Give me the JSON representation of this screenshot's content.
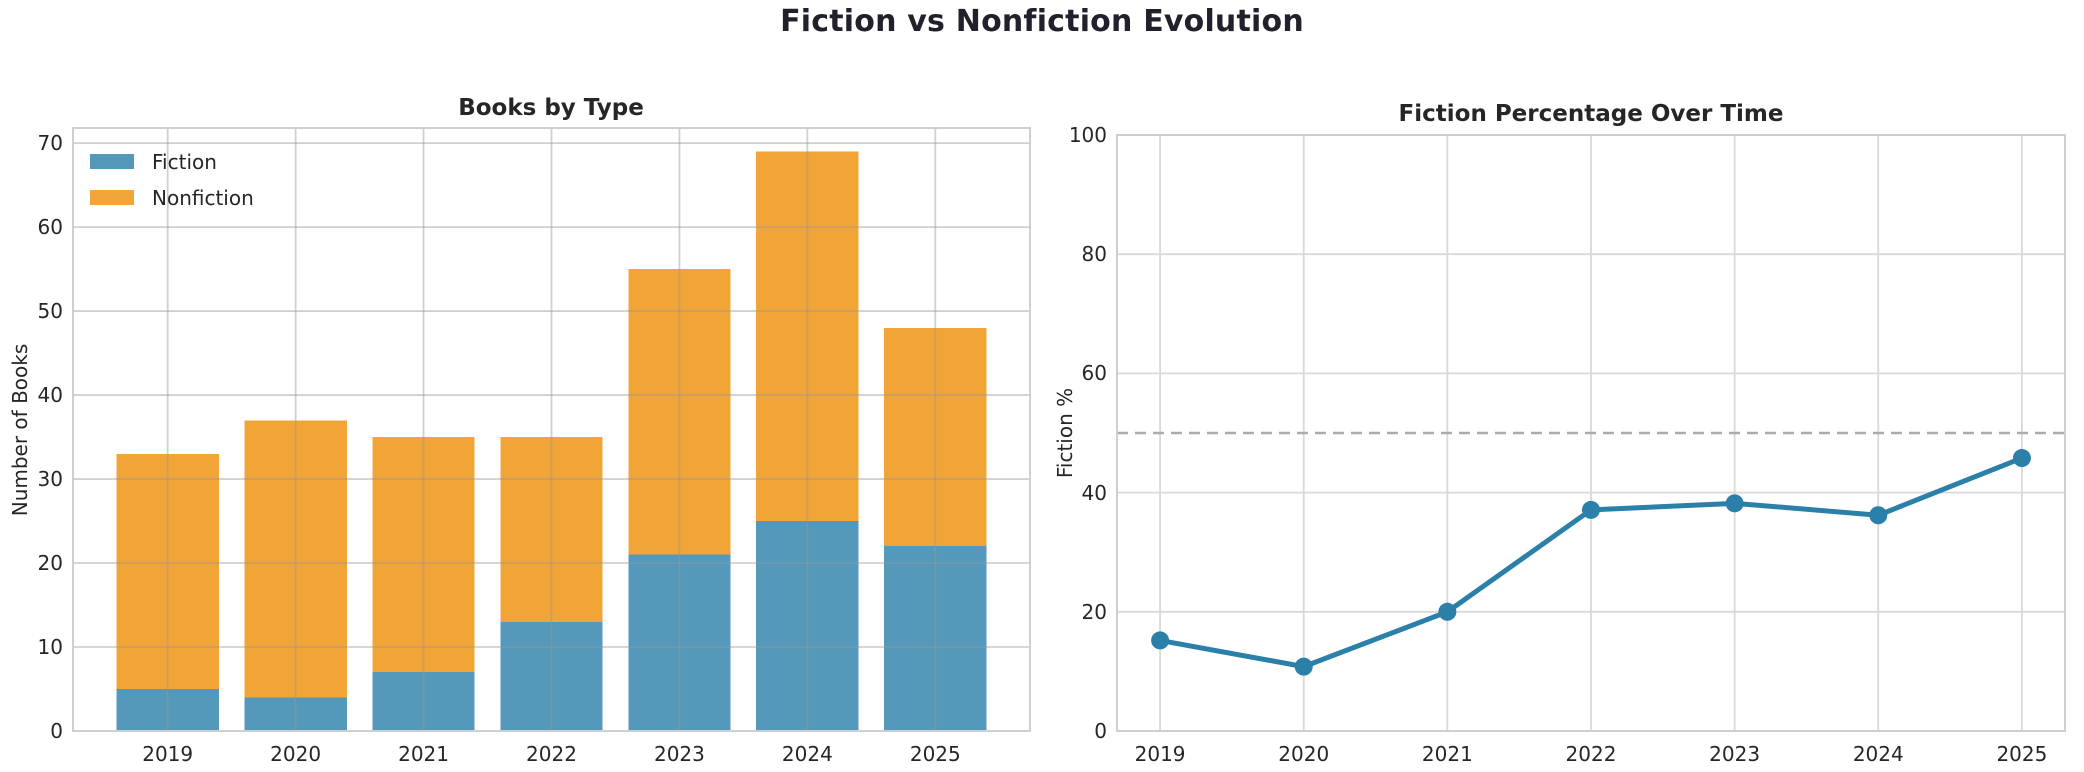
{
  "figure_title": "Fiction vs Nonfiction Evolution",
  "colors": {
    "fiction_bar": "#5499B9",
    "nonfiction_bar": "#F2A537",
    "line": "#2A80A8",
    "reference_dash": "#ABABAB",
    "gridline": "#D9D9D9",
    "frame": "#CFCFCF",
    "text": "#262626"
  },
  "chart_data": [
    {
      "type": "bar",
      "stacked": true,
      "title": "Books by Type",
      "categories": [
        "2019",
        "2020",
        "2021",
        "2022",
        "2023",
        "2024",
        "2025"
      ],
      "series": [
        {
          "name": "Fiction",
          "color": "#5499B9",
          "values": [
            5,
            4,
            7,
            13,
            21,
            25,
            22
          ]
        },
        {
          "name": "Nonfiction",
          "color": "#F2A537",
          "values": [
            28,
            33,
            28,
            22,
            34,
            44,
            26
          ]
        }
      ],
      "totals": [
        33,
        37,
        35,
        35,
        55,
        69,
        48
      ],
      "xlabel": "",
      "ylabel": "Number of Books",
      "yticks": [
        0,
        10,
        20,
        30,
        40,
        50,
        60,
        70
      ],
      "ylim": [
        0,
        71.8
      ],
      "grid": true,
      "legend_position": "upper-left",
      "legend": [
        "Fiction",
        "Nonfiction"
      ]
    },
    {
      "type": "line",
      "title": "Fiction Percentage Over Time",
      "categories": [
        "2019",
        "2020",
        "2021",
        "2022",
        "2023",
        "2024",
        "2025"
      ],
      "series": [
        {
          "name": "Fiction %",
          "color": "#2A80A8",
          "values": [
            15.2,
            10.8,
            20.0,
            37.1,
            38.2,
            36.2,
            45.8
          ]
        }
      ],
      "xlabel": "",
      "ylabel": "Fiction %",
      "yticks": [
        0,
        20,
        40,
        60,
        80,
        100
      ],
      "ylim": [
        0,
        100
      ],
      "grid": true,
      "reference_line": {
        "value": 50,
        "style": "dashed",
        "color": "#ABABAB"
      },
      "marker": "circle"
    }
  ]
}
